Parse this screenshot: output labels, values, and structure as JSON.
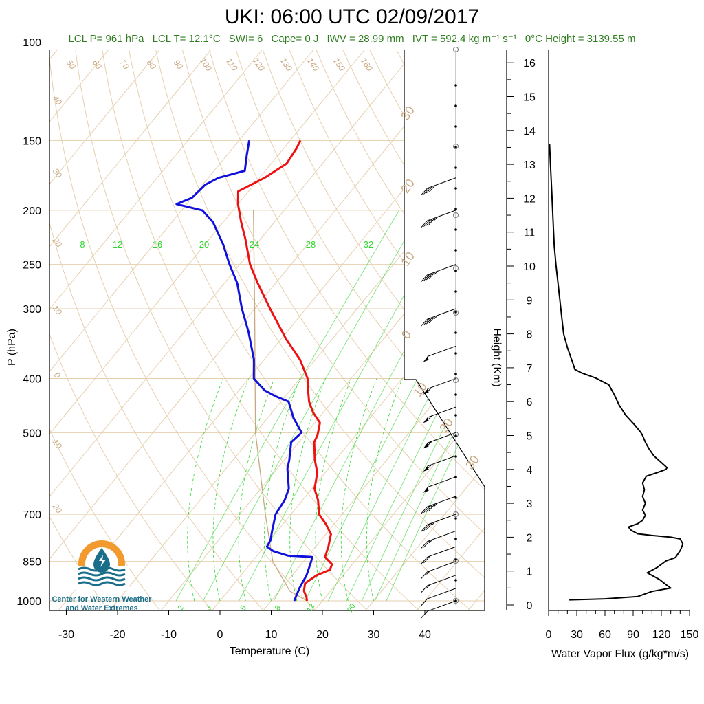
{
  "title": "UKI: 06:00 UTC 02/09/2017",
  "info": {
    "lcl_p": "LCL P= 961 hPa",
    "lcl_t": "LCL T= 12.1°C",
    "swi": "SWI= 6",
    "cape": "Cape= 0 J",
    "iwv": "IWV = 28.99 mm",
    "ivt": "IVT = 592.4 kg m⁻¹ s⁻¹",
    "zero_height": "0°C Height = 3139.55 m"
  },
  "logo": {
    "line1": "Center for Western Weather",
    "line2": "and Water Extremes"
  },
  "colors": {
    "temperature": "#ee1111",
    "dewpoint": "#1111dd",
    "isotherm": "#e6cfae",
    "mixing_ratio": "#2fd62f",
    "parcel": "#c8a882",
    "flux": "#000000",
    "logo_orange": "#f29a2e",
    "logo_teal": "#1a6e8a"
  },
  "chart_data": [
    {
      "type": "line",
      "subtype": "skew-t",
      "xlabel": "Temperature (C)",
      "ylabel": "P (hPa)",
      "ylabel_right": "Height (Km)",
      "x_ticks": [
        -30,
        -20,
        -10,
        0,
        10,
        20,
        30,
        40
      ],
      "y_ticks": [
        100,
        150,
        200,
        250,
        300,
        400,
        500,
        700,
        850,
        1000
      ],
      "height_ticks": [
        0,
        1,
        2,
        3,
        4,
        5,
        6,
        7,
        8,
        9,
        10,
        11,
        12,
        13,
        14,
        15,
        16
      ],
      "pressure_range": [
        1000,
        100
      ],
      "mixing_ratio_labels_top": [
        "8",
        "12",
        "16",
        "20",
        "24",
        "28",
        "32"
      ],
      "mixing_ratio_labels_bottom": [
        "2",
        "3",
        "5",
        "8",
        "12",
        "20"
      ],
      "dry_adiabat_labels": [
        "50",
        "60",
        "70",
        "80",
        "90",
        "100",
        "110",
        "120",
        "130",
        "140",
        "150",
        "160"
      ],
      "left_edge_labels": [
        "40",
        "30",
        "20",
        "10",
        "0",
        "10",
        "20"
      ],
      "right_labels": [
        "30",
        "20",
        "10",
        "0",
        "10",
        "20",
        "30"
      ],
      "series": [
        {
          "name": "",
          "role": "temperature",
          "points": [
            [
              1000,
              17.0
            ],
            [
              985,
              16.3
            ],
            [
              960,
              14.8
            ],
            [
              930,
              13.8
            ],
            [
              900,
              14.8
            ],
            [
              880,
              16.5
            ],
            [
              860,
              16.0
            ],
            [
              835,
              13.5
            ],
            [
              800,
              12.5
            ],
            [
              760,
              11.0
            ],
            [
              730,
              8.5
            ],
            [
              700,
              5.5
            ],
            [
              660,
              3.0
            ],
            [
              630,
              0.5
            ],
            [
              590,
              -1.5
            ],
            [
              560,
              -4.0
            ],
            [
              520,
              -7.0
            ],
            [
              505,
              -7.5
            ],
            [
              480,
              -9.0
            ],
            [
              460,
              -12.0
            ],
            [
              440,
              -14.5
            ],
            [
              420,
              -16.5
            ],
            [
              400,
              -18.5
            ],
            [
              370,
              -23.0
            ],
            [
              340,
              -29.0
            ],
            [
              300,
              -37.0
            ],
            [
              270,
              -43.5
            ],
            [
              250,
              -48.0
            ],
            [
              225,
              -53.0
            ],
            [
              210,
              -56.5
            ],
            [
              195,
              -60.0
            ],
            [
              185,
              -62.0
            ],
            [
              175,
              -59.0
            ],
            [
              165,
              -57.0
            ],
            [
              155,
              -57.5
            ],
            [
              150,
              -58.0
            ]
          ]
        },
        {
          "name": "",
          "role": "dewpoint",
          "points": [
            [
              1000,
              14.5
            ],
            [
              985,
              14.2
            ],
            [
              950,
              13.5
            ],
            [
              900,
              12.8
            ],
            [
              850,
              11.5
            ],
            [
              835,
              11.0
            ],
            [
              830,
              6.0
            ],
            [
              815,
              2.5
            ],
            [
              800,
              0.5
            ],
            [
              780,
              0.2
            ],
            [
              750,
              -1.0
            ],
            [
              700,
              -3.0
            ],
            [
              660,
              -3.5
            ],
            [
              630,
              -4.5
            ],
            [
              580,
              -8.0
            ],
            [
              560,
              -9.0
            ],
            [
              520,
              -11.5
            ],
            [
              500,
              -11.0
            ],
            [
              470,
              -15.0
            ],
            [
              440,
              -18.5
            ],
            [
              430,
              -22.0
            ],
            [
              420,
              -25.0
            ],
            [
              400,
              -29.0
            ],
            [
              370,
              -32.0
            ],
            [
              330,
              -37.5
            ],
            [
              300,
              -42.5
            ],
            [
              270,
              -47.5
            ],
            [
              250,
              -52.0
            ],
            [
              230,
              -56.5
            ],
            [
              210,
              -62.0
            ],
            [
              200,
              -66.0
            ],
            [
              195,
              -72.0
            ],
            [
              190,
              -70.0
            ],
            [
              180,
              -69.5
            ],
            [
              175,
              -68.0
            ],
            [
              170,
              -64.0
            ],
            [
              160,
              -66.0
            ],
            [
              150,
              -68.0
            ]
          ]
        }
      ],
      "wind_barbs_hpa": [
        1000,
        950,
        900,
        850,
        800,
        750,
        700,
        650,
        600,
        550,
        500,
        450,
        400,
        350,
        300,
        250,
        200,
        175
      ],
      "wind_barbs_kt": [
        10,
        10,
        15,
        15,
        20,
        25,
        35,
        45,
        50,
        55,
        55,
        55,
        55,
        50,
        45,
        45,
        45,
        40
      ]
    },
    {
      "type": "line",
      "xlabel": "Water Vapor Flux (g/kg*m/s)",
      "ylabel": "Height (Km)",
      "x_ticks": [
        0,
        30,
        60,
        90,
        120,
        150
      ],
      "xlim": [
        0,
        150
      ],
      "ylim": [
        0,
        16.2
      ],
      "series": [
        {
          "name": "",
          "points": [
            [
              22,
              0.15
            ],
            [
              60,
              0.18
            ],
            [
              95,
              0.25
            ],
            [
              110,
              0.4
            ],
            [
              120,
              0.45
            ],
            [
              130,
              0.5
            ],
            [
              125,
              0.6
            ],
            [
              118,
              0.75
            ],
            [
              105,
              0.95
            ],
            [
              115,
              1.1
            ],
            [
              125,
              1.3
            ],
            [
              135,
              1.4
            ],
            [
              140,
              1.6
            ],
            [
              143,
              1.8
            ],
            [
              140,
              1.95
            ],
            [
              130,
              2.0
            ],
            [
              110,
              2.05
            ],
            [
              95,
              2.1
            ],
            [
              88,
              2.2
            ],
            [
              85,
              2.3
            ],
            [
              95,
              2.4
            ],
            [
              100,
              2.5
            ],
            [
              103,
              2.65
            ],
            [
              100,
              2.8
            ],
            [
              103,
              3.0
            ],
            [
              100,
              3.2
            ],
            [
              102,
              3.4
            ],
            [
              100,
              3.6
            ],
            [
              104,
              3.8
            ],
            [
              115,
              3.9
            ],
            [
              125,
              4.0
            ],
            [
              126,
              4.05
            ],
            [
              120,
              4.2
            ],
            [
              112,
              4.4
            ],
            [
              107,
              4.6
            ],
            [
              103,
              4.8
            ],
            [
              100,
              5.0
            ],
            [
              98,
              5.1
            ],
            [
              92,
              5.3
            ],
            [
              82,
              5.6
            ],
            [
              75,
              5.9
            ],
            [
              70,
              6.2
            ],
            [
              64,
              6.5
            ],
            [
              50,
              6.7
            ],
            [
              35,
              6.85
            ],
            [
              28,
              6.95
            ],
            [
              25,
              7.2
            ],
            [
              20,
              7.6
            ],
            [
              16,
              8.0
            ],
            [
              14,
              8.5
            ],
            [
              12,
              9.0
            ],
            [
              10,
              9.5
            ],
            [
              8,
              10.0
            ],
            [
              6,
              10.6
            ],
            [
              5,
              11.2
            ],
            [
              4,
              11.8
            ],
            [
              3,
              12.4
            ],
            [
              2,
              13.0
            ],
            [
              1,
              13.6
            ]
          ]
        }
      ]
    }
  ]
}
